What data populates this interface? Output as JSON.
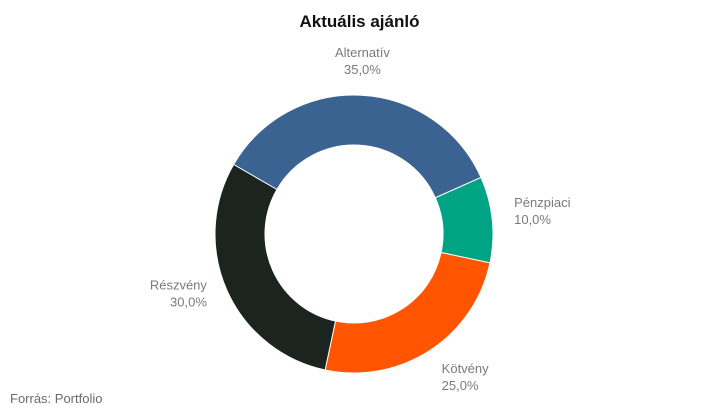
{
  "chart_data": {
    "type": "pie",
    "title": "Aktuális ajánló",
    "donut": true,
    "slices": [
      {
        "label": "Alternatív",
        "value": 35.0,
        "value_label": "35,0%",
        "color": "#3b6391"
      },
      {
        "label": "Pénzpiaci",
        "value": 10.0,
        "value_label": "10,0%",
        "color": "#00a383"
      },
      {
        "label": "Kötvény",
        "value": 25.0,
        "value_label": "25,0%",
        "color": "#ff5400"
      },
      {
        "label": "Részvény",
        "value": 30.0,
        "value_label": "30,0%",
        "color": "#1c2420"
      }
    ]
  },
  "source": "Forrás: Portfolio"
}
